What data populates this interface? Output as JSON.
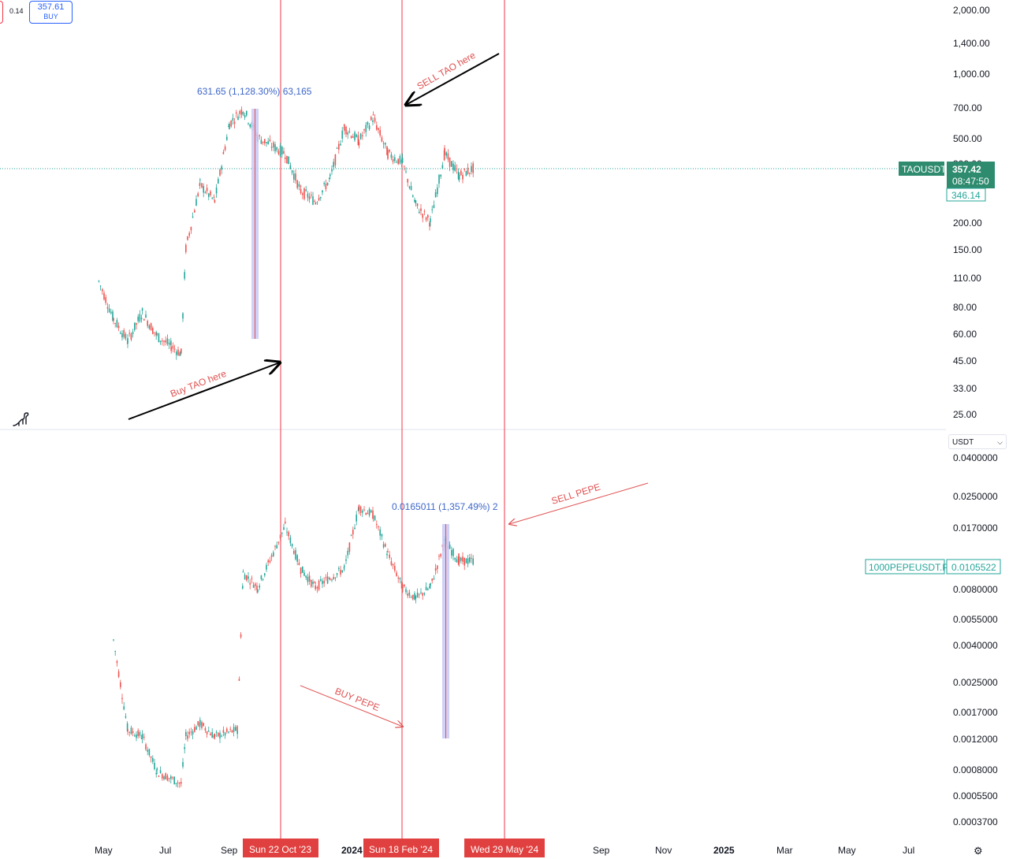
{
  "toolbar": {
    "spread": "0.14",
    "buy_price": "357.61",
    "buy_label": "BUY",
    "currency": "USDT"
  },
  "top_pane": {
    "symbol": "TAOUSDT",
    "last_price": "357.42",
    "countdown": "08:47:50",
    "prev_price": "346.14",
    "measure_label": "631.65 (1,128.30%) 63,165",
    "buy_text": "Buy TAO here",
    "sell_text": "SELL TAO here",
    "y_ticks": [
      "2,000.00",
      "1,400.00",
      "1,000.00",
      "700.00",
      "500.00",
      "300.00",
      "200.00",
      "150.00",
      "110.00",
      "80.00",
      "60.00",
      "45.00",
      "33.00",
      "25.00"
    ]
  },
  "bottom_pane": {
    "symbol": "1000PEPEUSDT.P",
    "last_price": "0.0105522",
    "measure_label": "0.0165011 (1,357.49%) 2",
    "buy_text": "BUY PEPE",
    "sell_text": "SELL PEPE",
    "y_ticks": [
      "0.0400000",
      "0.0250000",
      "0.0170000",
      "0.0080000",
      "0.0055000",
      "0.0040000",
      "0.0025000",
      "0.0017000",
      "0.0012000",
      "0.0008000",
      "0.0005500",
      "0.0003700"
    ]
  },
  "time_axis": {
    "labels": [
      "May",
      "Jul",
      "Sep",
      "2024",
      "Sep",
      "Nov",
      "2025",
      "Mar",
      "May",
      "Jul"
    ],
    "markers": [
      "Sun 22 Oct '23",
      "Sun 18 Feb '24",
      "Wed 29 May '24"
    ]
  },
  "colors": {
    "up": "#26a69a",
    "down": "#ef5350",
    "marker": "#f23645",
    "measure_fill": "#c9c8f5",
    "price_tag": "#2e8b6e"
  },
  "chart_data": [
    {
      "type": "candlestick",
      "title": "TAOUSDT",
      "scale": "log",
      "ylim": [
        25,
        2000
      ],
      "x_range": [
        "2023-05",
        "2025-07"
      ],
      "approx_close_path": [
        {
          "x": "2023-05",
          "y": 105
        },
        {
          "x": "2023-06",
          "y": 70
        },
        {
          "x": "2023-07",
          "y": 55
        },
        {
          "x": "2023-08",
          "y": 75
        },
        {
          "x": "2023-09",
          "y": 58
        },
        {
          "x": "2023-10",
          "y": 52
        },
        {
          "x": "2023-10-22",
          "y": 48
        },
        {
          "x": "2023-11",
          "y": 150
        },
        {
          "x": "2023-12",
          "y": 300
        },
        {
          "x": "2024-01",
          "y": 250
        },
        {
          "x": "2024-02",
          "y": 580
        },
        {
          "x": "2024-03",
          "y": 680
        },
        {
          "x": "2024-04",
          "y": 500
        },
        {
          "x": "2024-05-29",
          "y": 420
        },
        {
          "x": "2024-07",
          "y": 280
        },
        {
          "x": "2024-08",
          "y": 250
        },
        {
          "x": "2024-09",
          "y": 320
        },
        {
          "x": "2024-10",
          "y": 560
        },
        {
          "x": "2024-11",
          "y": 480
        },
        {
          "x": "2024-12",
          "y": 620
        },
        {
          "x": "2025-01",
          "y": 420
        },
        {
          "x": "2025-02",
          "y": 380
        },
        {
          "x": "2025-03",
          "y": 240
        },
        {
          "x": "2025-04",
          "y": 200
        },
        {
          "x": "2025-05",
          "y": 420
        },
        {
          "x": "2025-06",
          "y": 330
        },
        {
          "x": "2025-07",
          "y": 357.42
        }
      ]
    },
    {
      "type": "candlestick",
      "title": "1000PEPEUSDT.P",
      "scale": "log",
      "ylim": [
        0.00037,
        0.04
      ],
      "x_range": [
        "2023-05",
        "2025-07"
      ],
      "approx_close_path": [
        {
          "x": "2023-06",
          "y": 0.0038
        },
        {
          "x": "2023-07",
          "y": 0.0012
        },
        {
          "x": "2023-08",
          "y": 0.0011
        },
        {
          "x": "2023-09",
          "y": 0.0007
        },
        {
          "x": "2023-10-22",
          "y": 0.0006
        },
        {
          "x": "2023-11",
          "y": 0.0011
        },
        {
          "x": "2023-12",
          "y": 0.0013
        },
        {
          "x": "2024-01",
          "y": 0.0011
        },
        {
          "x": "2024-02-18",
          "y": 0.0012
        },
        {
          "x": "2024-03",
          "y": 0.009
        },
        {
          "x": "2024-04",
          "y": 0.0075
        },
        {
          "x": "2024-05-29",
          "y": 0.0165
        },
        {
          "x": "2024-07",
          "y": 0.0095
        },
        {
          "x": "2024-08",
          "y": 0.0075
        },
        {
          "x": "2024-09",
          "y": 0.0085
        },
        {
          "x": "2024-10",
          "y": 0.0095
        },
        {
          "x": "2024-11",
          "y": 0.021
        },
        {
          "x": "2024-12",
          "y": 0.019
        },
        {
          "x": "2025-01",
          "y": 0.0115
        },
        {
          "x": "2025-02",
          "y": 0.0075
        },
        {
          "x": "2025-03",
          "y": 0.0065
        },
        {
          "x": "2025-04",
          "y": 0.0075
        },
        {
          "x": "2025-05",
          "y": 0.0135
        },
        {
          "x": "2025-06",
          "y": 0.0105
        },
        {
          "x": "2025-07",
          "y": 0.0105522
        }
      ]
    }
  ]
}
